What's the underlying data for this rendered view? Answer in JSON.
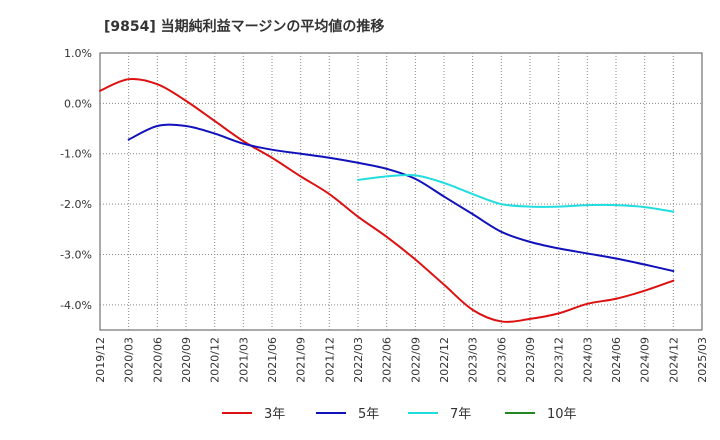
{
  "chart_data": {
    "type": "line",
    "title": "[9854]  当期純利益マージンの平均値の推移",
    "xlabel": "",
    "ylabel": "",
    "x_ticks": [
      "2019/12",
      "2020/03",
      "2020/06",
      "2020/09",
      "2020/12",
      "2021/03",
      "2021/06",
      "2021/09",
      "2021/12",
      "2022/03",
      "2022/06",
      "2022/09",
      "2022/12",
      "2023/03",
      "2023/06",
      "2023/09",
      "2023/12",
      "2024/03",
      "2024/06",
      "2024/09",
      "2024/12",
      "2025/03"
    ],
    "y_ticks": [
      "1.0%",
      "0.0%",
      "-1.0%",
      "-2.0%",
      "-3.0%",
      "-4.0%"
    ],
    "y_tick_values": [
      1.0,
      0.0,
      -1.0,
      -2.0,
      -3.0,
      -4.0
    ],
    "ylim": [
      -4.5,
      1.0
    ],
    "grid": true,
    "legend_position": "bottom",
    "series": [
      {
        "name": "3年",
        "color": "#dd1111",
        "x": [
          "2019/12",
          "2020/03",
          "2020/06",
          "2020/09",
          "2020/12",
          "2021/03",
          "2021/06",
          "2021/09",
          "2021/12",
          "2022/03",
          "2022/06",
          "2022/09",
          "2022/12",
          "2023/03",
          "2023/06",
          "2023/09",
          "2023/12",
          "2024/03",
          "2024/06",
          "2024/09",
          "2024/12"
        ],
        "values": [
          0.25,
          0.48,
          0.38,
          0.05,
          -0.35,
          -0.75,
          -1.08,
          -1.45,
          -1.8,
          -2.25,
          -2.65,
          -3.1,
          -3.6,
          -4.1,
          -4.33,
          -4.28,
          -4.17,
          -3.98,
          -3.88,
          -3.72,
          -3.52
        ]
      },
      {
        "name": "5年",
        "color": "#1111bb",
        "x": [
          "2020/03",
          "2020/06",
          "2020/09",
          "2020/12",
          "2021/03",
          "2021/06",
          "2021/09",
          "2021/12",
          "2022/03",
          "2022/06",
          "2022/09",
          "2022/12",
          "2023/03",
          "2023/06",
          "2023/09",
          "2023/12",
          "2024/03",
          "2024/06",
          "2024/09",
          "2024/12"
        ],
        "values": [
          -0.72,
          -0.45,
          -0.45,
          -0.6,
          -0.8,
          -0.92,
          -1.0,
          -1.08,
          -1.18,
          -1.3,
          -1.5,
          -1.85,
          -2.2,
          -2.55,
          -2.75,
          -2.88,
          -2.98,
          -3.08,
          -3.2,
          -3.33
        ]
      },
      {
        "name": "7年",
        "color": "#22dddd",
        "x": [
          "2022/03",
          "2022/06",
          "2022/09",
          "2022/12",
          "2023/03",
          "2023/06",
          "2023/09",
          "2023/12",
          "2024/03",
          "2024/06",
          "2024/09",
          "2024/12"
        ],
        "values": [
          -1.52,
          -1.45,
          -1.43,
          -1.58,
          -1.8,
          -2.0,
          -2.05,
          -2.05,
          -2.02,
          -2.02,
          -2.06,
          -2.15
        ]
      },
      {
        "name": "10年",
        "color": "#228822",
        "x": [],
        "values": []
      }
    ]
  }
}
